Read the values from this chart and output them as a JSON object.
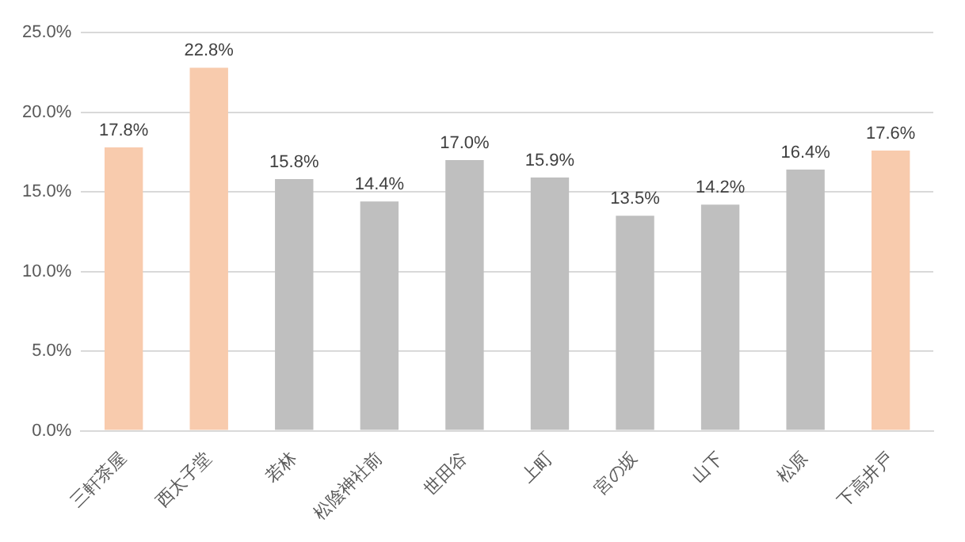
{
  "chart_data": {
    "type": "bar",
    "categories": [
      "三軒茶屋",
      "西太子堂",
      "若林",
      "松陰神社前",
      "世田谷",
      "上町",
      "宮の坂",
      "山下",
      "松原",
      "下高井戸"
    ],
    "values": [
      17.8,
      22.8,
      15.8,
      14.4,
      17.0,
      15.9,
      13.5,
      14.2,
      16.4,
      17.6
    ],
    "colors": [
      "#f8cbad",
      "#f8cbad",
      "#bfbfbf",
      "#bfbfbf",
      "#bfbfbf",
      "#bfbfbf",
      "#bfbfbf",
      "#bfbfbf",
      "#bfbfbf",
      "#f8cbad"
    ],
    "value_labels": [
      "17.8%",
      "22.8%",
      "15.8%",
      "14.4%",
      "17.0%",
      "15.9%",
      "13.5%",
      "14.2%",
      "16.4%",
      "17.6%"
    ],
    "ylim": [
      0,
      25
    ],
    "yticks": [
      {
        "value": 0,
        "label": "0.0%"
      },
      {
        "value": 5,
        "label": "5.0%"
      },
      {
        "value": 10,
        "label": "10.0%"
      },
      {
        "value": 15,
        "label": "15.0%"
      },
      {
        "value": 20,
        "label": "20.0%"
      },
      {
        "value": 25,
        "label": "25.0%"
      }
    ],
    "grid": "y"
  }
}
